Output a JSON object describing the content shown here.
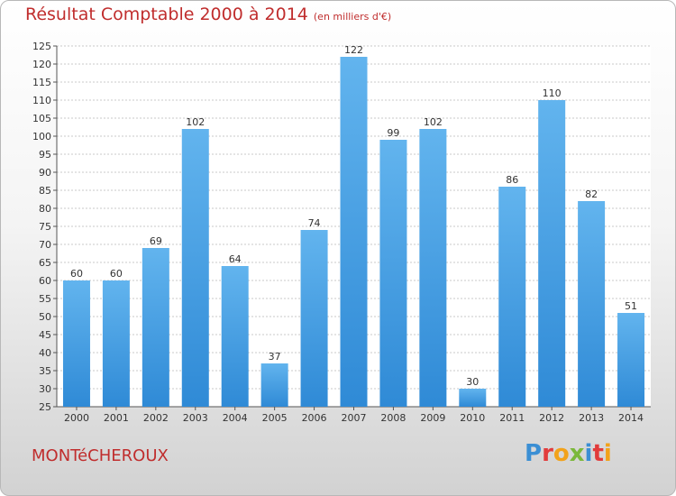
{
  "title": "Résultat Comptable 2000 à 2014",
  "subtitle": "(en milliers d'€)",
  "town": "MONTéCHEROUX",
  "logo": {
    "text": "Proxiti",
    "colors": [
      "#3b8fd4",
      "#e23c3c",
      "#f2a21a",
      "#7bb83a",
      "#3b8fd4",
      "#e23c3c",
      "#f2a21a"
    ]
  },
  "colors": {
    "title": "#c02d2d",
    "bar": "#2f8ad6",
    "bar_light": "#62b4ee"
  },
  "chart_data": {
    "type": "bar",
    "title": "Résultat Comptable 2000 à 2014",
    "xlabel": "",
    "ylabel": "",
    "categories": [
      "2000",
      "2001",
      "2002",
      "2003",
      "2004",
      "2005",
      "2006",
      "2007",
      "2008",
      "2009",
      "2010",
      "2011",
      "2012",
      "2013",
      "2014"
    ],
    "values": [
      60,
      60,
      69,
      102,
      64,
      37,
      74,
      122,
      99,
      102,
      30,
      86,
      110,
      82,
      51
    ],
    "ylim": [
      25,
      125
    ],
    "yticks": [
      25,
      30,
      35,
      40,
      45,
      50,
      55,
      60,
      65,
      70,
      75,
      80,
      85,
      90,
      95,
      100,
      105,
      110,
      115,
      120,
      125
    ],
    "grid": true
  }
}
